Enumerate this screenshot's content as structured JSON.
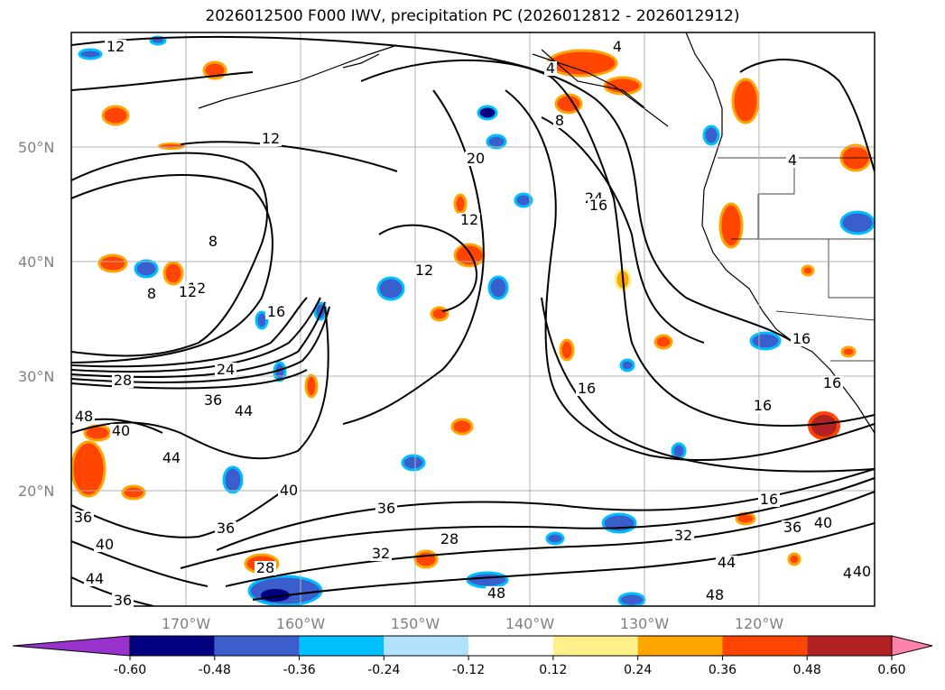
{
  "title": "2026012500 F000 IWV, precipitation PC (2026012812 - 2026012912)",
  "map": {
    "lat_labels": [
      "50°N",
      "40°N",
      "30°N",
      "20°N"
    ],
    "lon_labels": [
      "170°W",
      "160°W",
      "150°W",
      "140°W",
      "130°W",
      "120°W"
    ],
    "contour_labels": [
      "12",
      "12",
      "8",
      "4",
      "12",
      "12",
      "12",
      "20",
      "24",
      "4",
      "8",
      "16",
      "8",
      "12",
      "16",
      "28",
      "24",
      "36",
      "44",
      "48",
      "40",
      "40",
      "44",
      "16",
      "16",
      "40",
      "36",
      "36",
      "40",
      "44",
      "36",
      "28",
      "32",
      "28",
      "36",
      "16",
      "32",
      "36",
      "40",
      "44",
      "48",
      "48",
      "44",
      "40",
      "16",
      "16",
      "4"
    ],
    "iwv_levels": [
      4,
      8,
      12,
      16,
      20,
      24,
      28,
      32,
      36,
      40,
      44,
      48
    ]
  },
  "colorbar": {
    "ticks": [
      "-0.60",
      "-0.48",
      "-0.36",
      "-0.24",
      "-0.12",
      "0.12",
      "0.24",
      "0.36",
      "0.48",
      "0.60"
    ],
    "colors": [
      "#9932cc",
      "#000080",
      "#3a5fcd",
      "#00bfff",
      "#b0e2ff",
      "#ffffff",
      "#fff08c",
      "#ffa500",
      "#ff4500",
      "#b22222",
      "#ff82ab"
    ]
  }
}
